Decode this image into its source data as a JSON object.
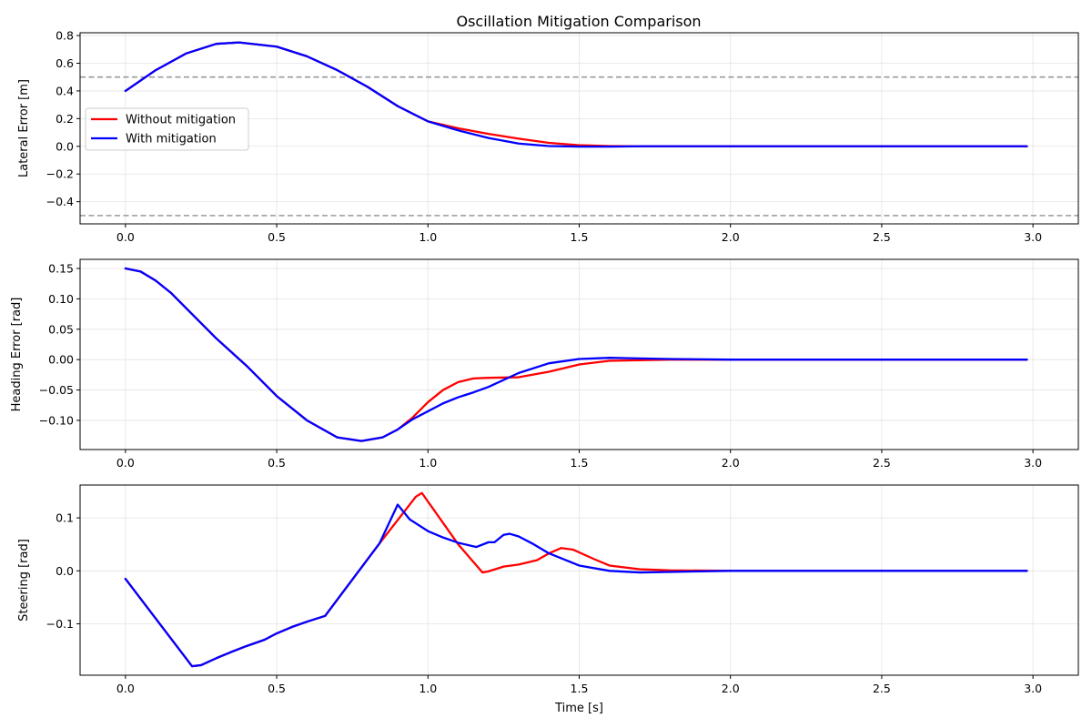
{
  "chart_data": [
    {
      "type": "line",
      "title": "Oscillation Mitigation Comparison",
      "xlabel": "",
      "ylabel": "Lateral Error [m]",
      "xlim": [
        -0.15,
        3.15
      ],
      "ylim": [
        -0.56,
        0.82
      ],
      "xticks": [
        0.0,
        0.5,
        1.0,
        1.5,
        2.0,
        2.5,
        3.0
      ],
      "xtick_labels": [
        "0.0",
        "0.5",
        "1.0",
        "1.5",
        "2.0",
        "2.5",
        "3.0"
      ],
      "yticks": [
        -0.4,
        -0.2,
        0.0,
        0.2,
        0.4,
        0.6,
        0.8
      ],
      "ytick_labels": [
        "−0.4",
        "−0.2",
        "0.0",
        "0.2",
        "0.4",
        "0.6",
        "0.8"
      ],
      "grid": true,
      "legend_position": "center-left",
      "hlines": [
        {
          "y": 0.5,
          "color": "#999999",
          "style": "dashed"
        },
        {
          "y": -0.5,
          "color": "#999999",
          "style": "dashed"
        }
      ],
      "series": [
        {
          "name": "Without mitigation",
          "color": "#ff0000",
          "x": [
            0.0,
            0.1,
            0.2,
            0.3,
            0.375,
            0.5,
            0.6,
            0.7,
            0.8,
            0.9,
            1.0,
            1.1,
            1.2,
            1.3,
            1.4,
            1.5,
            1.6,
            1.7,
            2.0,
            2.5,
            2.98
          ],
          "y": [
            0.4,
            0.55,
            0.67,
            0.74,
            0.75,
            0.72,
            0.65,
            0.55,
            0.43,
            0.29,
            0.18,
            0.13,
            0.09,
            0.055,
            0.025,
            0.008,
            0.002,
            0.0,
            0.0,
            0.0,
            0.0
          ]
        },
        {
          "name": "With mitigation",
          "color": "#0000ff",
          "x": [
            0.0,
            0.1,
            0.2,
            0.3,
            0.375,
            0.5,
            0.6,
            0.7,
            0.8,
            0.9,
            1.0,
            1.1,
            1.2,
            1.3,
            1.4,
            1.5,
            1.6,
            1.7,
            2.0,
            2.5,
            2.98
          ],
          "y": [
            0.4,
            0.55,
            0.67,
            0.74,
            0.75,
            0.72,
            0.65,
            0.55,
            0.43,
            0.29,
            0.18,
            0.115,
            0.06,
            0.02,
            0.002,
            -0.002,
            -0.002,
            0.0,
            0.0,
            0.0,
            0.0
          ]
        }
      ]
    },
    {
      "type": "line",
      "title": "",
      "xlabel": "",
      "ylabel": "Heading Error [rad]",
      "xlim": [
        -0.15,
        3.15
      ],
      "ylim": [
        -0.148,
        0.165
      ],
      "xticks": [
        0.0,
        0.5,
        1.0,
        1.5,
        2.0,
        2.5,
        3.0
      ],
      "xtick_labels": [
        "0.0",
        "0.5",
        "1.0",
        "1.5",
        "2.0",
        "2.5",
        "3.0"
      ],
      "yticks": [
        -0.1,
        -0.05,
        0.0,
        0.05,
        0.1,
        0.15
      ],
      "ytick_labels": [
        "−0.10",
        "−0.05",
        "0.00",
        "0.05",
        "0.10",
        "0.15"
      ],
      "grid": true,
      "series": [
        {
          "name": "Without mitigation",
          "color": "#ff0000",
          "x": [
            0.0,
            0.05,
            0.1,
            0.15,
            0.2,
            0.3,
            0.4,
            0.5,
            0.6,
            0.7,
            0.78,
            0.85,
            0.9,
            0.95,
            1.0,
            1.05,
            1.1,
            1.15,
            1.2,
            1.3,
            1.4,
            1.5,
            1.6,
            1.7,
            1.8,
            2.0,
            2.5,
            2.98
          ],
          "y": [
            0.15,
            0.145,
            0.13,
            0.11,
            0.085,
            0.035,
            -0.01,
            -0.06,
            -0.1,
            -0.128,
            -0.134,
            -0.128,
            -0.115,
            -0.095,
            -0.07,
            -0.05,
            -0.037,
            -0.031,
            -0.03,
            -0.029,
            -0.02,
            -0.008,
            -0.002,
            -0.001,
            0.0,
            0.0,
            0.0,
            0.0
          ]
        },
        {
          "name": "With mitigation",
          "color": "#0000ff",
          "x": [
            0.0,
            0.05,
            0.1,
            0.15,
            0.2,
            0.3,
            0.4,
            0.5,
            0.6,
            0.7,
            0.78,
            0.85,
            0.9,
            0.95,
            1.0,
            1.05,
            1.1,
            1.15,
            1.2,
            1.3,
            1.4,
            1.5,
            1.6,
            1.7,
            1.8,
            2.0,
            2.5,
            2.98
          ],
          "y": [
            0.15,
            0.145,
            0.13,
            0.11,
            0.085,
            0.035,
            -0.01,
            -0.06,
            -0.1,
            -0.128,
            -0.134,
            -0.128,
            -0.115,
            -0.098,
            -0.085,
            -0.072,
            -0.062,
            -0.054,
            -0.045,
            -0.022,
            -0.006,
            0.001,
            0.003,
            0.002,
            0.001,
            0.0,
            0.0,
            0.0
          ]
        }
      ]
    },
    {
      "type": "line",
      "title": "",
      "xlabel": "Time [s]",
      "ylabel": "Steering [rad]",
      "xlim": [
        -0.15,
        3.15
      ],
      "ylim": [
        -0.197,
        0.162
      ],
      "xticks": [
        0.0,
        0.5,
        1.0,
        1.5,
        2.0,
        2.5,
        3.0
      ],
      "xtick_labels": [
        "0.0",
        "0.5",
        "1.0",
        "1.5",
        "2.0",
        "2.5",
        "3.0"
      ],
      "yticks": [
        -0.1,
        0.0,
        0.1
      ],
      "ytick_labels": [
        "−0.1",
        "0.0",
        "0.1"
      ],
      "grid": true,
      "series": [
        {
          "name": "Without mitigation",
          "color": "#ff0000",
          "x": [
            0.0,
            0.22,
            0.25,
            0.3,
            0.35,
            0.4,
            0.46,
            0.5,
            0.55,
            0.6,
            0.66,
            0.84,
            0.96,
            0.98,
            1.1,
            1.18,
            1.2,
            1.25,
            1.3,
            1.36,
            1.4,
            1.44,
            1.48,
            1.55,
            1.6,
            1.7,
            1.8,
            2.0,
            2.5,
            2.98
          ],
          "y": [
            -0.015,
            -0.18,
            -0.178,
            -0.165,
            -0.153,
            -0.142,
            -0.13,
            -0.118,
            -0.106,
            -0.096,
            -0.085,
            0.052,
            0.14,
            0.147,
            0.05,
            -0.003,
            -0.001,
            0.008,
            0.012,
            0.02,
            0.033,
            0.043,
            0.04,
            0.022,
            0.01,
            0.003,
            0.001,
            0.0,
            0.0,
            0.0
          ]
        },
        {
          "name": "With mitigation",
          "color": "#0000ff",
          "x": [
            0.0,
            0.22,
            0.25,
            0.3,
            0.35,
            0.4,
            0.46,
            0.5,
            0.55,
            0.6,
            0.66,
            0.84,
            0.9,
            0.94,
            1.0,
            1.05,
            1.1,
            1.16,
            1.2,
            1.22,
            1.25,
            1.27,
            1.3,
            1.35,
            1.4,
            1.5,
            1.6,
            1.7,
            1.8,
            2.0,
            2.5,
            2.98
          ],
          "y": [
            -0.015,
            -0.18,
            -0.178,
            -0.165,
            -0.153,
            -0.142,
            -0.13,
            -0.118,
            -0.106,
            -0.096,
            -0.085,
            0.052,
            0.125,
            0.097,
            0.075,
            0.063,
            0.053,
            0.045,
            0.054,
            0.054,
            0.068,
            0.07,
            0.065,
            0.05,
            0.033,
            0.01,
            0.0,
            -0.003,
            -0.002,
            0.0,
            0.0,
            0.0
          ]
        }
      ]
    }
  ],
  "legend": {
    "items": [
      {
        "label": "Without mitigation",
        "color": "#ff0000"
      },
      {
        "label": "With mitigation",
        "color": "#0000ff"
      }
    ]
  }
}
